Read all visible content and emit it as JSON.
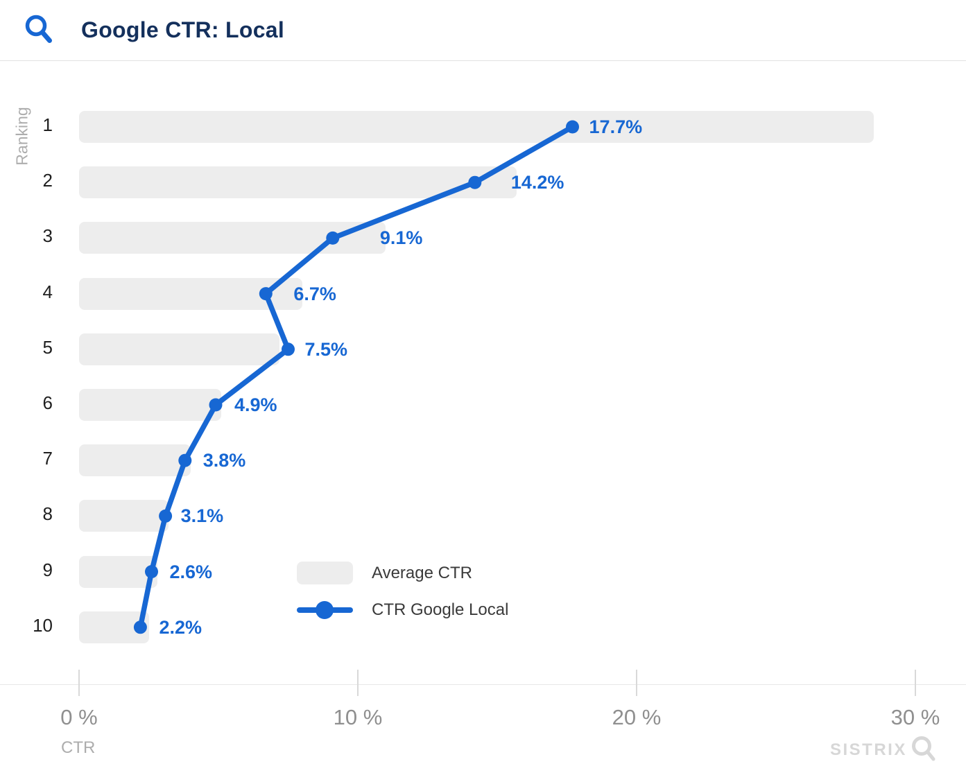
{
  "header": {
    "title": "Google CTR: Local"
  },
  "chart_data": {
    "type": "bar",
    "subtype": "horizontal bars + line overlay",
    "title": "Google CTR: Local",
    "categories": [
      "1",
      "2",
      "3",
      "4",
      "5",
      "6",
      "7",
      "8",
      "9",
      "10"
    ],
    "series": [
      {
        "name": "Average CTR",
        "kind": "bar",
        "color": "#ededed",
        "estimated": true,
        "values": [
          28.5,
          15.7,
          11.0,
          8.0,
          7.2,
          5.1,
          4.0,
          3.2,
          2.8,
          2.5
        ]
      },
      {
        "name": "CTR Google Local",
        "kind": "line",
        "color": "#1767d3",
        "values": [
          17.7,
          14.2,
          9.1,
          6.7,
          7.5,
          4.9,
          3.8,
          3.1,
          2.6,
          2.2
        ],
        "data_labels": [
          "17.7%",
          "14.2%",
          "9.1%",
          "6.7%",
          "7.5%",
          "4.9%",
          "3.8%",
          "3.1%",
          "2.6%",
          "2.2%"
        ]
      }
    ],
    "xlabel": "CTR",
    "ylabel": "Ranking",
    "x_ticks": [
      {
        "value": 0,
        "label": "0 %"
      },
      {
        "value": 10,
        "label": "10 %"
      },
      {
        "value": 20,
        "label": "20 %"
      },
      {
        "value": 30,
        "label": "30 %"
      }
    ],
    "xlim": [
      0,
      31.8
    ],
    "grid": false,
    "legend_position": "inside-lower-middle"
  },
  "watermark": {
    "brand": "SISTRIX"
  },
  "colors": {
    "accent_blue": "#1767d3",
    "title_navy": "#14305c",
    "bar_gray": "#ededed",
    "axis_tick_text": "#8f8f8f",
    "muted_text": "#adadad",
    "rank_text": "#1f1f1f",
    "legend_text": "#3a3a3a",
    "watermark_gray": "#d7d7d7"
  }
}
